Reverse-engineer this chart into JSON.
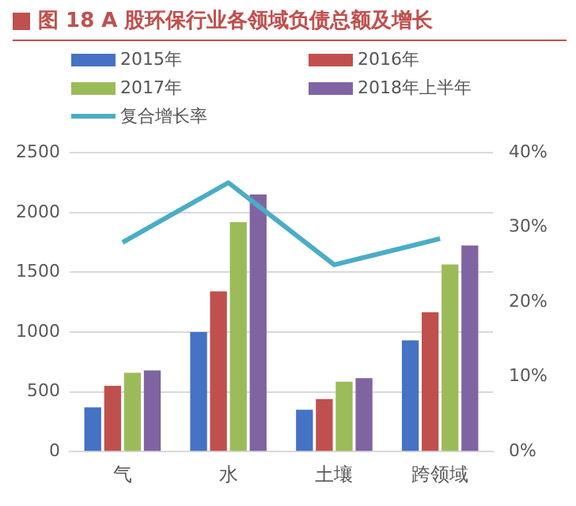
{
  "chart_data": {
    "type": "bar",
    "title": "图 18 A 股环保行业各领域负债总额及增长",
    "categories": [
      "气",
      "水",
      "土壤",
      "跨领域"
    ],
    "series": [
      {
        "name": "2015年",
        "color": "#4472c4",
        "values": [
          370,
          1000,
          350,
          930
        ]
      },
      {
        "name": "2016年",
        "color": "#c0504d",
        "values": [
          550,
          1340,
          440,
          1165
        ]
      },
      {
        "name": "2017年",
        "color": "#9bbb59",
        "values": [
          660,
          1920,
          585,
          1565
        ]
      },
      {
        "name": "2018年上半年",
        "color": "#8064a2",
        "values": [
          680,
          2150,
          615,
          1725
        ]
      },
      {
        "name": "复合增长率",
        "color": "#4bacc6",
        "type": "line",
        "axis": "y2",
        "values": [
          28,
          36,
          25,
          28.5
        ]
      }
    ],
    "ylim": [
      0,
      2500
    ],
    "yticks": [
      0,
      500,
      1000,
      1500,
      2000,
      2500
    ],
    "y2lim": [
      0,
      40
    ],
    "y2ticks": [
      {
        "value": 0,
        "label": "0%"
      },
      {
        "value": 10,
        "label": "10%"
      },
      {
        "value": 20,
        "label": "20%"
      },
      {
        "value": 30,
        "label": "30%"
      },
      {
        "value": 40,
        "label": "40%"
      }
    ],
    "grid": "y",
    "legend": "top",
    "marker": "none"
  }
}
